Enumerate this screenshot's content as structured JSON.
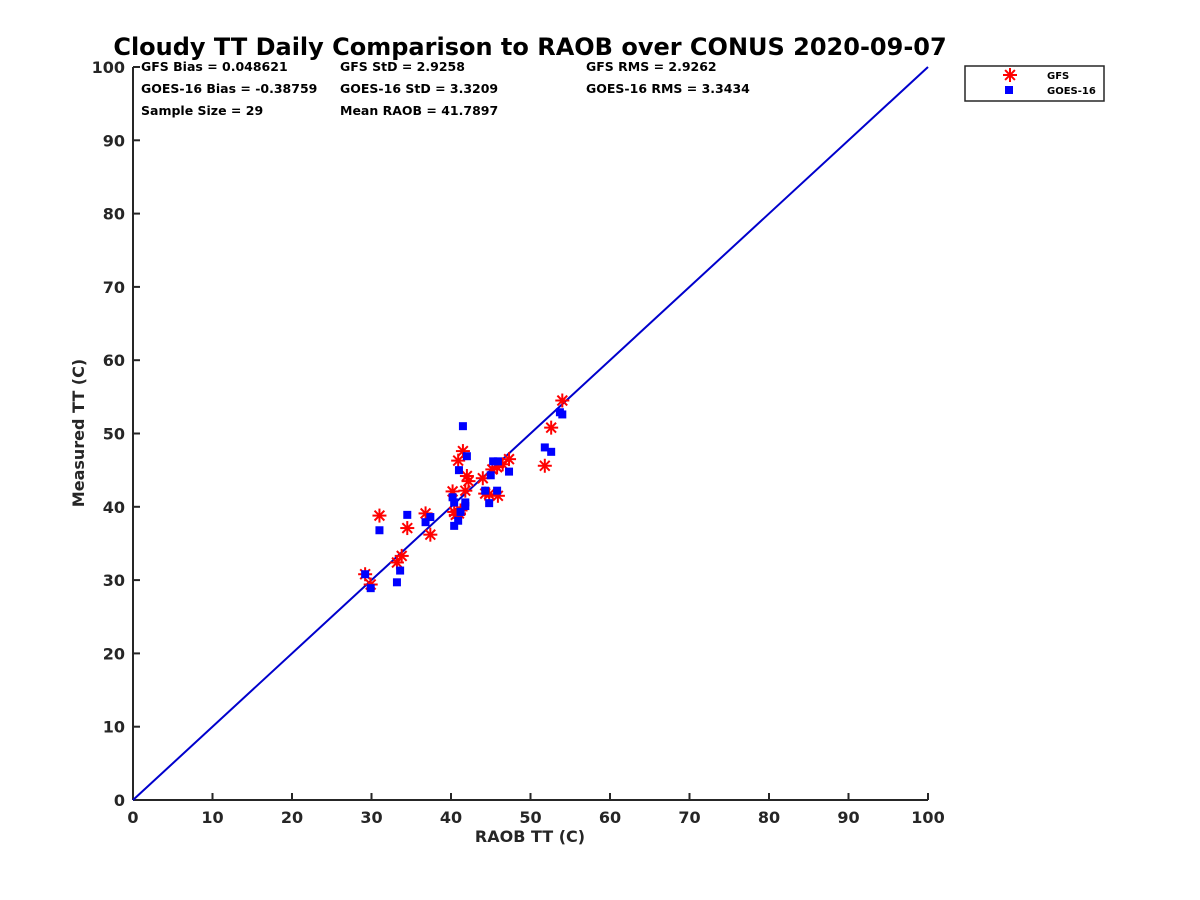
{
  "chart_data": {
    "type": "scatter",
    "title": "Cloudy TT Daily Comparison to RAOB over CONUS 2020-09-07",
    "xlabel": "RAOB TT (C)",
    "ylabel": "Measured TT (C)",
    "xlim": [
      0,
      100
    ],
    "ylim": [
      0,
      100
    ],
    "xticks": [
      "0",
      "10",
      "20",
      "30",
      "40",
      "50",
      "60",
      "70",
      "80",
      "90",
      "100"
    ],
    "yticks": [
      "0",
      "10",
      "20",
      "30",
      "40",
      "50",
      "60",
      "70",
      "80",
      "90",
      "100"
    ],
    "grid": false,
    "legend_position": "top-right, outside plot",
    "reference_line": {
      "x": [
        0,
        100
      ],
      "y": [
        0,
        100
      ],
      "color": "#0000cc"
    },
    "stats": [
      [
        "GFS Bias = 0.048621",
        "GFS StD = 2.9258",
        "GFS RMS = 2.9262"
      ],
      [
        "GOES-16 Bias = -0.38759",
        "GOES-16 StD = 3.3209",
        "GOES-16 RMS = 3.3434"
      ],
      [
        "Sample Size = 29",
        "Mean RAOB = 41.7897",
        ""
      ]
    ],
    "series": [
      {
        "name": "GFS",
        "marker": "asterisk",
        "color": "#ff0000",
        "x": [
          29.2,
          29.9,
          31.0,
          33.2,
          33.8,
          34.5,
          36.8,
          37.4,
          40.2,
          40.4,
          40.9,
          41.0,
          41.2,
          41.5,
          41.8,
          42.0,
          44.0,
          44.3,
          44.8,
          45.2,
          45.8,
          45.9,
          47.3,
          51.8,
          52.6,
          54.0,
          46.5,
          42.2,
          40.6
        ],
        "y": [
          30.8,
          29.4,
          38.8,
          32.4,
          33.3,
          37.1,
          39.1,
          36.2,
          42.1,
          39.3,
          46.3,
          39.1,
          39.5,
          47.6,
          42.2,
          44.2,
          43.9,
          41.8,
          41.7,
          45.1,
          45.4,
          41.5,
          46.5,
          45.6,
          50.8,
          54.5,
          45.8,
          43.5,
          38.9
        ]
      },
      {
        "name": "GOES-16",
        "marker": "square",
        "color": "#0000ff",
        "x": [
          29.2,
          29.9,
          31.0,
          33.2,
          33.6,
          34.5,
          36.8,
          37.4,
          40.2,
          40.4,
          40.4,
          40.9,
          41.0,
          41.2,
          41.5,
          41.8,
          42.0,
          44.3,
          44.8,
          45.0,
          45.3,
          45.8,
          45.9,
          47.3,
          51.8,
          52.6,
          53.7,
          54.0,
          41.8
        ],
        "y": [
          30.8,
          28.9,
          36.8,
          29.7,
          31.3,
          38.9,
          37.9,
          38.6,
          41.3,
          40.6,
          37.4,
          38.1,
          45.0,
          39.3,
          51.0,
          40.1,
          46.9,
          42.2,
          40.5,
          44.3,
          46.2,
          42.2,
          46.2,
          44.8,
          48.1,
          47.5,
          52.9,
          52.6,
          40.6
        ]
      }
    ]
  }
}
